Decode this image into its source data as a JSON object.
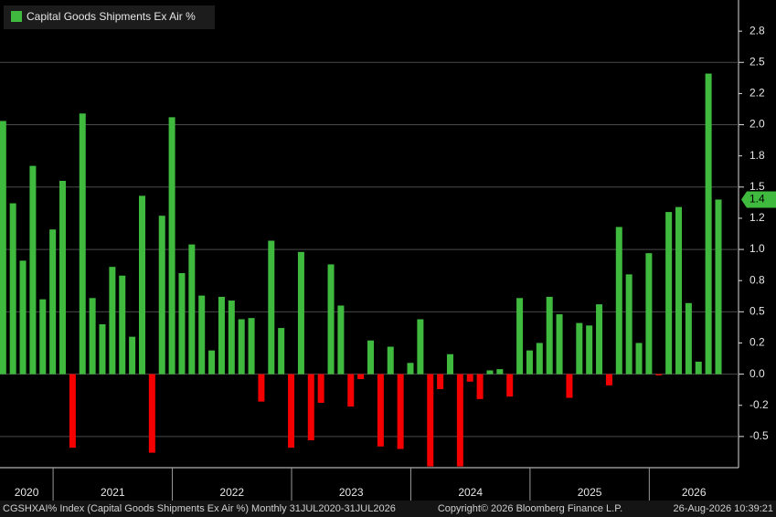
{
  "chart_data": {
    "type": "bar",
    "legend": "Capital Goods Shipments Ex Air %",
    "color": "#3fba3f",
    "negative_color": "#f50000",
    "grid": true,
    "ylim": [
      -0.75,
      3.0
    ],
    "yticks": [
      -0.5,
      {
        "value": 0,
        "label": "0.0"
      },
      0.5,
      {
        "value": 1,
        "label": "1.0"
      },
      1.5,
      {
        "value": 2,
        "label": "2.0"
      },
      2.5
    ],
    "yticks_minor": [
      {
        "value": -0.25,
        "label": "-0.2"
      },
      {
        "value": 0.25,
        "label": "0.2"
      },
      {
        "value": 0.75,
        "label": "0.8"
      },
      {
        "value": 1.25,
        "label": "1.2"
      },
      {
        "value": 1.75,
        "label": "1.8"
      },
      {
        "value": 2.25,
        "label": "2.2"
      },
      {
        "value": 2.75,
        "label": "2.8"
      }
    ],
    "years": [
      "2020",
      "2021",
      "2022",
      "2023",
      "2024",
      "2025",
      "2026"
    ],
    "values": [
      2.03,
      1.37,
      0.91,
      1.67,
      0.6,
      1.16,
      1.55,
      -0.59,
      2.09,
      0.61,
      0.4,
      0.86,
      0.79,
      0.3,
      1.43,
      -0.63,
      1.27,
      2.06,
      0.81,
      1.04,
      0.63,
      0.19,
      0.62,
      0.59,
      0.44,
      0.45,
      -0.22,
      1.07,
      0.37,
      -0.59,
      0.98,
      -0.53,
      -0.23,
      0.88,
      0.55,
      -0.26,
      -0.04,
      0.27,
      -0.58,
      0.22,
      -0.6,
      0.09,
      0.44,
      -0.74,
      -0.12,
      0.16,
      -0.74,
      -0.06,
      -0.2,
      0.03,
      0.04,
      -0.18,
      0.61,
      0.19,
      0.25,
      0.62,
      0.48,
      -0.19,
      0.41,
      0.39,
      0.56,
      -0.09,
      1.18,
      0.8,
      0.25,
      0.97,
      -0.01,
      1.3,
      1.34,
      0.57,
      0.1,
      2.41,
      1.4
    ],
    "footer_left": "CGSHXAI% Index (Capital Goods Shipments Ex Air %) Monthly 31JUL2020-31JUL2026",
    "footer_center": "Copyright© 2026 Bloomberg Finance L.P.",
    "footer_right": "26-Aug-2026 10:39:21"
  }
}
